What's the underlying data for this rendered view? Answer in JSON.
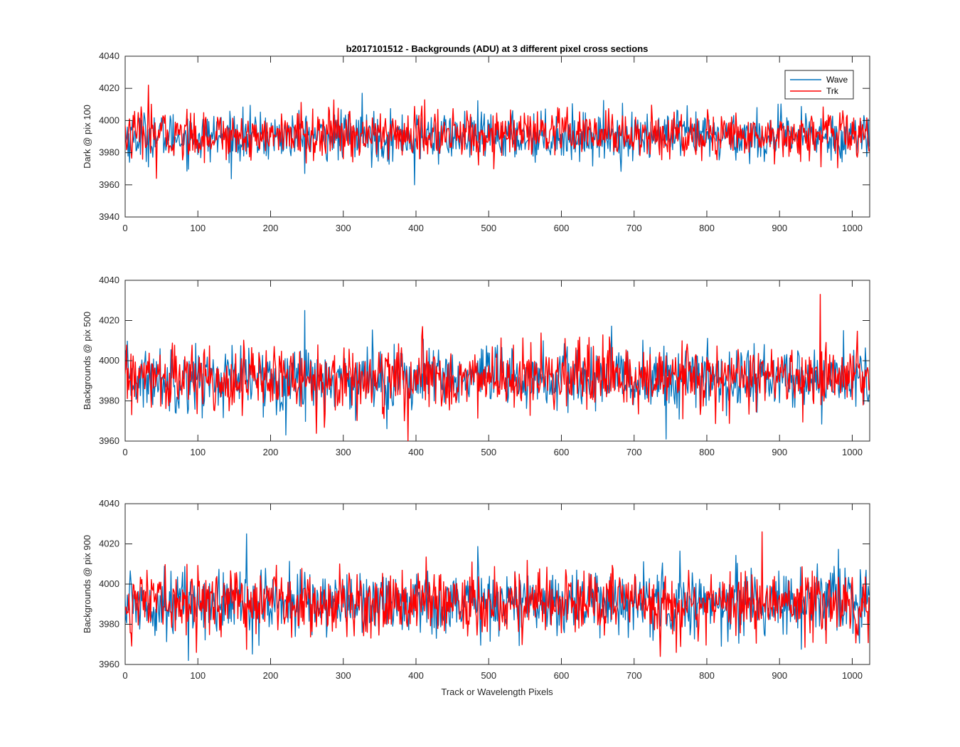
{
  "chart_data": [
    {
      "type": "line",
      "title": "b2017101512 - Backgrounds (ADU) at 3 different pixel cross sections",
      "xlabel": "",
      "ylabel": "Dark @ pix 100",
      "xlim": [
        0,
        1024
      ],
      "ylim": [
        3940,
        4040
      ],
      "xticks": [
        0,
        100,
        200,
        300,
        400,
        500,
        600,
        700,
        800,
        900,
        1000
      ],
      "yticks": [
        3940,
        3960,
        3980,
        4000,
        4020,
        4040
      ],
      "grid": false,
      "legend": {
        "placement": "top-right",
        "entries": [
          "Wave",
          "Trk"
        ]
      },
      "series": [
        {
          "name": "Wave",
          "color": "#0072BD",
          "mean": 3990,
          "sd": 7.5,
          "min": 3960,
          "max": 4017,
          "n": 1024
        },
        {
          "name": "Trk",
          "color": "#FF0000",
          "mean": 3991,
          "sd": 7.5,
          "min": 3964,
          "max": 4022,
          "n": 1024
        }
      ]
    },
    {
      "type": "line",
      "title": "",
      "xlabel": "",
      "ylabel": "Backgrounds @ pix 500",
      "xlim": [
        0,
        1024
      ],
      "ylim": [
        3960,
        4040
      ],
      "xticks": [
        0,
        100,
        200,
        300,
        400,
        500,
        600,
        700,
        800,
        900,
        1000
      ],
      "yticks": [
        3960,
        3980,
        4000,
        4020,
        4040
      ],
      "grid": false,
      "series": [
        {
          "name": "Wave",
          "color": "#0072BD",
          "mean": 3991,
          "sd": 8,
          "min": 3961,
          "max": 4025,
          "n": 1024
        },
        {
          "name": "Trk",
          "color": "#FF0000",
          "mean": 3991,
          "sd": 8,
          "min": 3960,
          "max": 4033,
          "n": 1024
        }
      ]
    },
    {
      "type": "line",
      "title": "",
      "xlabel": "Track or Wavelength Pixels",
      "ylabel": "Backgrounds @ pix 900",
      "xlim": [
        0,
        1024
      ],
      "ylim": [
        3960,
        4040
      ],
      "xticks": [
        0,
        100,
        200,
        300,
        400,
        500,
        600,
        700,
        800,
        900,
        1000
      ],
      "yticks": [
        3960,
        3980,
        4000,
        4020,
        4040
      ],
      "grid": false,
      "series": [
        {
          "name": "Wave",
          "color": "#0072BD",
          "mean": 3991,
          "sd": 8,
          "min": 3962,
          "max": 4025,
          "n": 1024
        },
        {
          "name": "Trk",
          "color": "#FF0000",
          "mean": 3991,
          "sd": 8,
          "min": 3964,
          "max": 4026,
          "n": 1024
        }
      ]
    }
  ]
}
